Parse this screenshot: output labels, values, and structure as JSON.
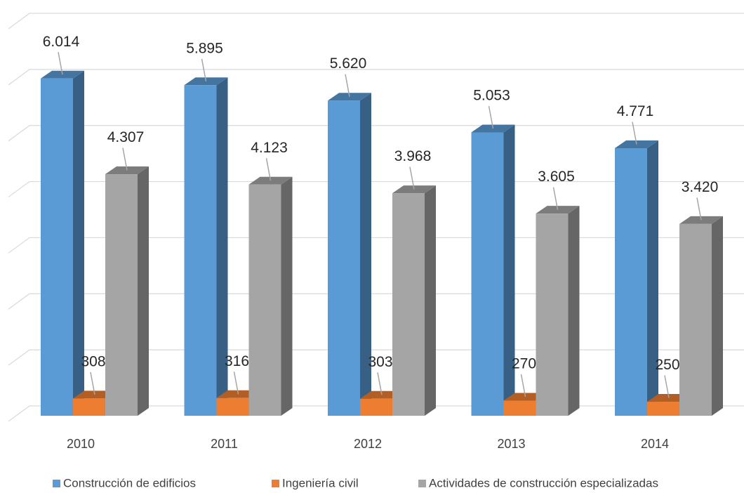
{
  "chart_data": {
    "type": "bar3d",
    "categories": [
      "2010",
      "2011",
      "2012",
      "2013",
      "2014"
    ],
    "series": [
      {
        "name": "Construcción de edificios",
        "color": "#5b9bd5",
        "values": [
          6014,
          5895,
          5620,
          5053,
          4771
        ],
        "value_labels": [
          "6.014",
          "5.895",
          "5.620",
          "5.053",
          "4.771"
        ]
      },
      {
        "name": "Ingeniería civil",
        "color": "#ed7d31",
        "values": [
          308,
          316,
          303,
          270,
          250
        ],
        "value_labels": [
          "308",
          "316",
          "303",
          "270",
          "250"
        ]
      },
      {
        "name": "Actividades de construcción especializadas",
        "color": "#a5a5a5",
        "values": [
          4307,
          4123,
          3968,
          3605,
          3420
        ],
        "value_labels": [
          "4.307",
          "4.123",
          "3.968",
          "3.605",
          "3.420"
        ]
      }
    ],
    "ylim": [
      0,
      7000
    ],
    "yticks": [
      0,
      1000,
      2000,
      3000,
      4000,
      5000,
      6000,
      7000
    ],
    "grid": true
  }
}
